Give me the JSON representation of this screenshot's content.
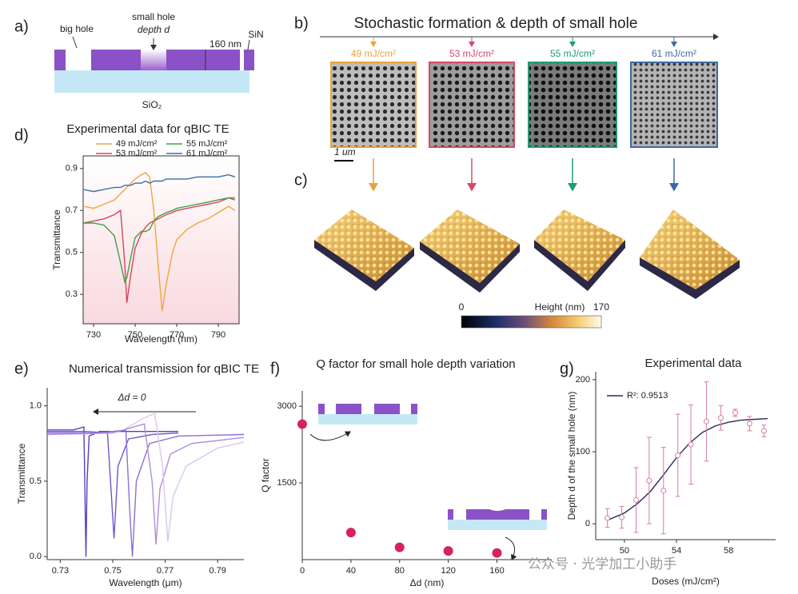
{
  "panel_a": {
    "label": "a)",
    "big_hole": "big hole",
    "small_hole": "small hole",
    "depth": "depth d",
    "thickness": "160 nm",
    "top_layer": "SiN",
    "substrate": "SiO₂"
  },
  "panel_b": {
    "label": "b)",
    "title": "Stochastic formation & depth of small hole",
    "scale_bar": "1 um",
    "doses": [
      {
        "label": "49 mJ/cm²",
        "color": "#e9a23b"
      },
      {
        "label": "53 mJ/cm²",
        "color": "#d44a66"
      },
      {
        "label": "55 mJ/cm²",
        "color": "#1e9b74"
      },
      {
        "label": "61 mJ/cm²",
        "color": "#3d6aa3"
      }
    ]
  },
  "panel_c": {
    "label": "c)",
    "colorbar": {
      "label": "Height (nm)",
      "lim": [
        0,
        170
      ]
    }
  },
  "chart_data": [
    {
      "type": "line",
      "panel_label": "d)",
      "title": "Experimental data for qBIC TE",
      "xlabel": "Wavelength (nm)",
      "ylabel": "Transmittance",
      "frame": "box",
      "legend": "above",
      "background": "#f9d9df",
      "x": [
        725,
        730,
        735,
        740,
        743,
        745,
        746,
        748,
        750,
        753,
        755,
        757,
        759,
        761,
        763,
        765,
        768,
        770,
        775,
        780,
        785,
        790,
        795,
        798
      ],
      "series": [
        {
          "name": "49 mJ/cm²",
          "color": "#f0a53c",
          "values": [
            0.72,
            0.71,
            0.73,
            0.75,
            0.78,
            0.8,
            0.81,
            0.83,
            0.85,
            0.87,
            0.88,
            0.86,
            0.7,
            0.45,
            0.22,
            0.35,
            0.5,
            0.56,
            0.61,
            0.64,
            0.66,
            0.69,
            0.72,
            0.7
          ]
        },
        {
          "name": "53 mJ/cm²",
          "color": "#d4455f",
          "values": [
            0.64,
            0.65,
            0.66,
            0.68,
            0.7,
            0.45,
            0.26,
            0.4,
            0.52,
            0.59,
            0.62,
            0.64,
            0.65,
            0.66,
            0.67,
            0.68,
            0.69,
            0.7,
            0.71,
            0.72,
            0.73,
            0.74,
            0.76,
            0.75
          ]
        },
        {
          "name": "55 mJ/cm²",
          "color": "#3da243",
          "values": [
            0.64,
            0.64,
            0.63,
            0.58,
            0.45,
            0.36,
            0.38,
            0.48,
            0.57,
            0.6,
            0.6,
            0.61,
            0.65,
            0.67,
            0.68,
            0.69,
            0.7,
            0.71,
            0.72,
            0.73,
            0.74,
            0.75,
            0.76,
            0.76
          ]
        },
        {
          "name": "61 mJ/cm²",
          "color": "#3c6fa6",
          "values": [
            0.8,
            0.79,
            0.8,
            0.81,
            0.81,
            0.82,
            0.82,
            0.82,
            0.83,
            0.83,
            0.84,
            0.83,
            0.84,
            0.84,
            0.84,
            0.85,
            0.85,
            0.85,
            0.85,
            0.86,
            0.86,
            0.86,
            0.87,
            0.86
          ]
        }
      ],
      "xlim": [
        725,
        800
      ],
      "xticks": [
        730,
        750,
        770,
        790
      ],
      "ylim": [
        0.16,
        0.96
      ],
      "yticks": [
        0.3,
        0.5,
        0.7,
        0.9
      ]
    },
    {
      "type": "line",
      "panel_label": "e)",
      "title": "Numerical transmission for qBIC TE",
      "xlabel": "Wavelength (μm)",
      "ylabel": "Transmittance",
      "annotation": "Δd = 0",
      "frame": "axes",
      "series": [
        {
          "color": "#5a3ec2",
          "x": [
            0.725,
            0.735,
            0.739,
            0.7398,
            0.7402,
            0.741,
            0.745,
            0.76,
            0.775
          ],
          "values": [
            0.84,
            0.84,
            0.86,
            0.0,
            0.5,
            0.8,
            0.83,
            0.83,
            0.83
          ]
        },
        {
          "color": "#7456cc",
          "x": [
            0.725,
            0.74,
            0.748,
            0.7495,
            0.7505,
            0.752,
            0.756,
            0.765,
            0.775
          ],
          "values": [
            0.83,
            0.83,
            0.82,
            0.4,
            0.12,
            0.6,
            0.78,
            0.81,
            0.82
          ]
        },
        {
          "color": "#8c6fd6",
          "x": [
            0.725,
            0.745,
            0.755,
            0.7565,
            0.7575,
            0.759,
            0.764,
            0.775,
            0.8
          ],
          "values": [
            0.82,
            0.82,
            0.84,
            0.3,
            0.0,
            0.5,
            0.75,
            0.8,
            0.81
          ]
        },
        {
          "color": "#ad8fdc",
          "x": [
            0.725,
            0.75,
            0.762,
            0.765,
            0.7665,
            0.768,
            0.772,
            0.78,
            0.8
          ],
          "values": [
            0.81,
            0.82,
            0.88,
            0.5,
            0.08,
            0.45,
            0.68,
            0.75,
            0.79
          ]
        },
        {
          "color": "#d8c8ec",
          "x": [
            0.755,
            0.762,
            0.766,
            0.769,
            0.771,
            0.773,
            0.778,
            0.79,
            0.8
          ],
          "values": [
            0.85,
            0.92,
            0.95,
            0.6,
            0.1,
            0.4,
            0.6,
            0.72,
            0.76
          ]
        }
      ],
      "xlim": [
        0.725,
        0.8
      ],
      "xticks": [
        0.73,
        0.75,
        0.77,
        0.79
      ],
      "ylim": [
        -0.02,
        1.12
      ],
      "yticks": [
        {
          "value": 0,
          "label": "0.0"
        },
        0.5,
        {
          "value": 1,
          "label": "1.0"
        }
      ]
    },
    {
      "type": "scatter",
      "panel_label": "f)",
      "title": "Q factor for small hole depth variation",
      "xlabel": "Δd (nm)",
      "ylabel": "Q factor",
      "frame": "axes",
      "x": [
        0,
        40,
        80,
        120,
        160
      ],
      "values": [
        2650,
        530,
        240,
        170,
        130
      ],
      "color": "#d6245a",
      "xlim": [
        0,
        205
      ],
      "xticks": [
        0,
        40,
        80,
        120,
        160
      ],
      "ylim": [
        0,
        3300
      ],
      "yticks": [
        1500,
        3000
      ]
    },
    {
      "type": "scatter",
      "panel_label": "g)",
      "title": "Experimental data",
      "xlabel": "Doses (mJ/cm²)",
      "ylabel": "Depth d of the small hole (nm)",
      "frame": "axes",
      "legend": "upper left",
      "series": [
        {
          "name": "R²: 0.9513",
          "color": "#2b2a5e",
          "mode": "line",
          "x": [
            48.7,
            50,
            51,
            52,
            53,
            54,
            55,
            56,
            57,
            58,
            59,
            60,
            61
          ],
          "values": [
            5,
            15,
            28,
            45,
            68,
            92,
            112,
            127,
            136,
            141,
            144,
            145,
            146
          ]
        },
        {
          "color": "#d97aa8",
          "mode": "markers",
          "x": [
            48.7,
            49.8,
            50.9,
            51.9,
            53.0,
            54.1,
            55.1,
            56.3,
            57.4,
            58.5,
            59.6,
            60.7
          ],
          "values": [
            8,
            9,
            33,
            60,
            46,
            95,
            110,
            142,
            147,
            154,
            139,
            129
          ],
          "errors": [
            13,
            15,
            45,
            60,
            60,
            57,
            55,
            55,
            17,
            5,
            10,
            8
          ]
        }
      ],
      "xlim": [
        47.8,
        61.6
      ],
      "xticks": [
        50,
        54,
        58
      ],
      "ylim": [
        -22,
        211
      ],
      "yticks": [
        0,
        100,
        200
      ]
    }
  ],
  "watermark": "公众号 · 光学加工小助手"
}
